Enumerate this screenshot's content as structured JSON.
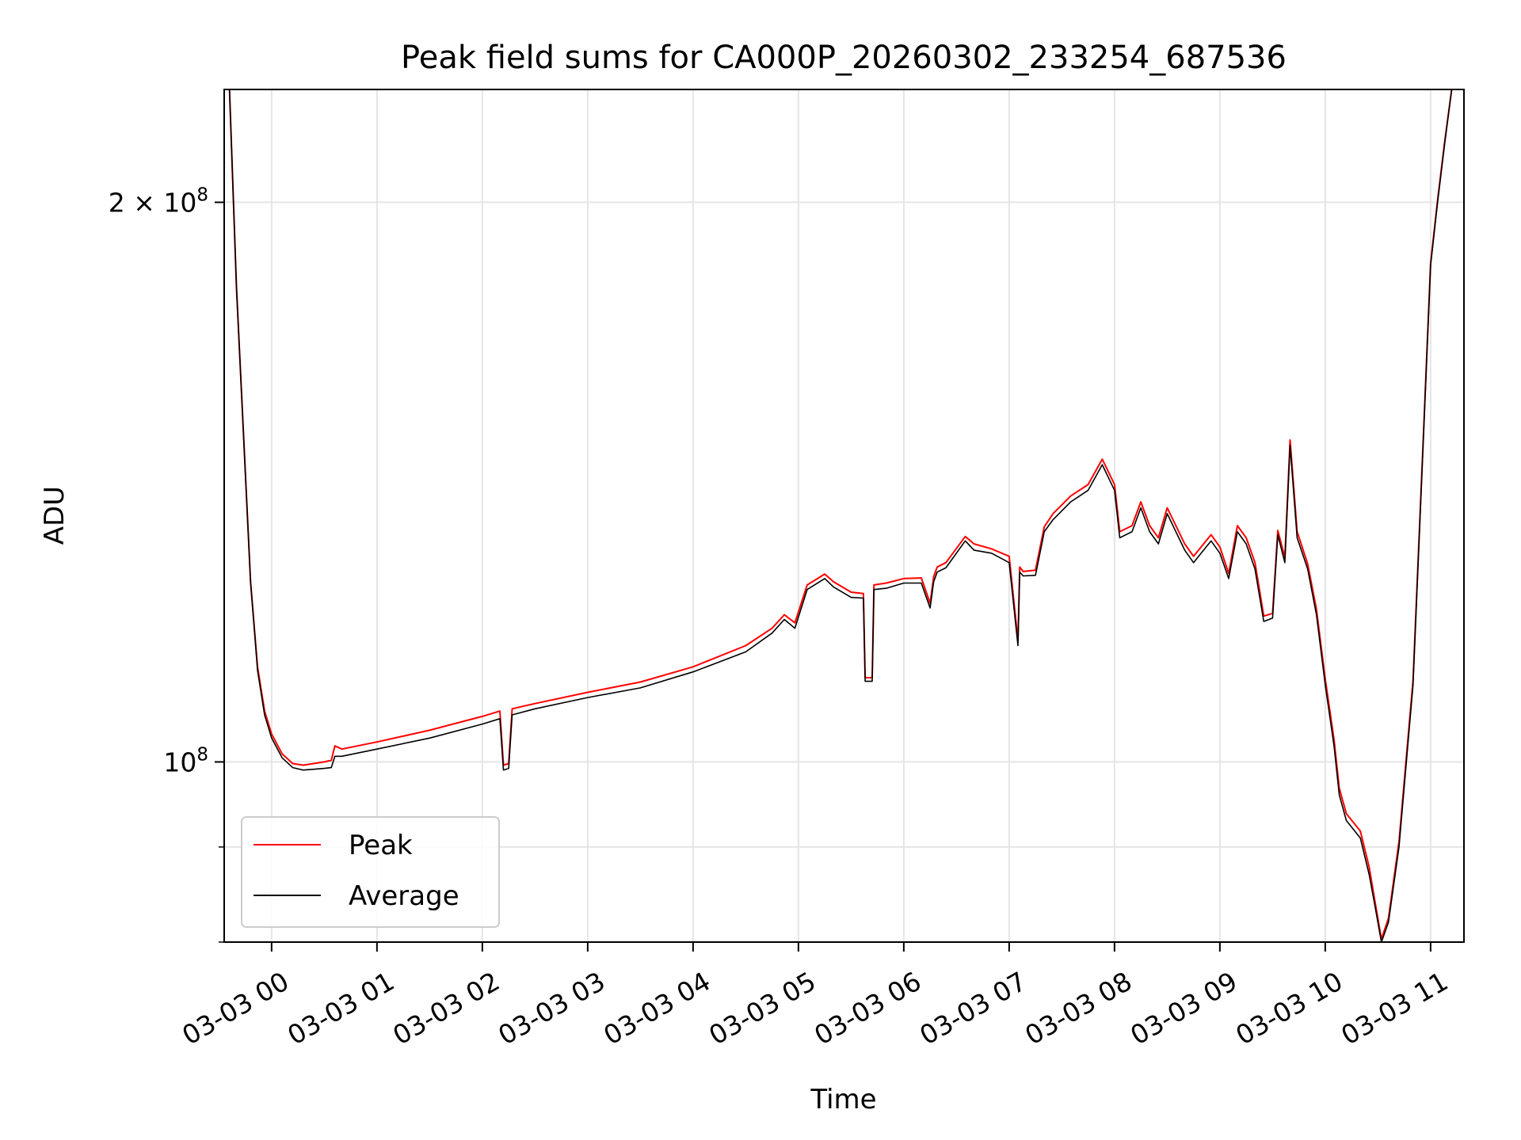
{
  "chart_data": {
    "type": "line",
    "title": "Peak field sums for CA000P_20260302_233254_687536",
    "xlabel": "Time",
    "ylabel": "ADU",
    "y_scale": "log",
    "ylim": [
      80000000,
      230000000
    ],
    "xlim": [
      "2026-03-02 23:33",
      "2026-03-03 11:19"
    ],
    "x_ticks": [
      {
        "t": "2026-03-03 00:00",
        "label": "03-03 00"
      },
      {
        "t": "2026-03-03 01:00",
        "label": "03-03 01"
      },
      {
        "t": "2026-03-03 02:00",
        "label": "03-03 02"
      },
      {
        "t": "2026-03-03 03:00",
        "label": "03-03 03"
      },
      {
        "t": "2026-03-03 04:00",
        "label": "03-03 04"
      },
      {
        "t": "2026-03-03 05:00",
        "label": "03-03 05"
      },
      {
        "t": "2026-03-03 06:00",
        "label": "03-03 06"
      },
      {
        "t": "2026-03-03 07:00",
        "label": "03-03 07"
      },
      {
        "t": "2026-03-03 08:00",
        "label": "03-03 08"
      },
      {
        "t": "2026-03-03 09:00",
        "label": "03-03 09"
      },
      {
        "t": "2026-03-03 10:00",
        "label": "03-03 10"
      },
      {
        "t": "2026-03-03 11:00",
        "label": "03-03 11"
      }
    ],
    "y_ticks_major": [
      {
        "value": 100000000,
        "base": "10",
        "exp": "8"
      },
      {
        "value": 200000000,
        "base": "2 × 10",
        "exp": "8"
      }
    ],
    "y_ticks_minor": [
      80000000,
      90000000
    ],
    "grid": true,
    "legend": {
      "placement": "lower-left",
      "entries": [
        {
          "label": "Peak",
          "color": "#ff0000"
        },
        {
          "label": "Average",
          "color": "#000000"
        }
      ]
    },
    "series": [
      {
        "name": "Average",
        "color": "#000000",
        "x": [
          "2026-03-02 23:36",
          "2026-03-02 23:40",
          "2026-03-02 23:44",
          "2026-03-02 23:48",
          "2026-03-02 23:52",
          "2026-03-02 23:56",
          "2026-03-03 00:00",
          "2026-03-03 00:06",
          "2026-03-03 00:12",
          "2026-03-03 00:18",
          "2026-03-03 00:24",
          "2026-03-03 00:30",
          "2026-03-03 00:34",
          "2026-03-03 00:36",
          "2026-03-03 00:40",
          "2026-03-03 01:00",
          "2026-03-03 01:30",
          "2026-03-03 02:00",
          "2026-03-03 02:10",
          "2026-03-03 02:12",
          "2026-03-03 02:15",
          "2026-03-03 02:17",
          "2026-03-03 02:30",
          "2026-03-03 03:00",
          "2026-03-03 03:30",
          "2026-03-03 04:00",
          "2026-03-03 04:30",
          "2026-03-03 04:45",
          "2026-03-03 04:52",
          "2026-03-03 04:58",
          "2026-03-03 05:05",
          "2026-03-03 05:15",
          "2026-03-03 05:20",
          "2026-03-03 05:30",
          "2026-03-03 05:37",
          "2026-03-03 05:38",
          "2026-03-03 05:42",
          "2026-03-03 05:43",
          "2026-03-03 05:50",
          "2026-03-03 06:00",
          "2026-03-03 06:10",
          "2026-03-03 06:15",
          "2026-03-03 06:17",
          "2026-03-03 06:19",
          "2026-03-03 06:24",
          "2026-03-03 06:35",
          "2026-03-03 06:40",
          "2026-03-03 06:50",
          "2026-03-03 07:00",
          "2026-03-03 07:05",
          "2026-03-03 07:06",
          "2026-03-03 07:08",
          "2026-03-03 07:15",
          "2026-03-03 07:20",
          "2026-03-03 07:25",
          "2026-03-03 07:35",
          "2026-03-03 07:45",
          "2026-03-03 07:53",
          "2026-03-03 08:00",
          "2026-03-03 08:03",
          "2026-03-03 08:10",
          "2026-03-03 08:15",
          "2026-03-03 08:20",
          "2026-03-03 08:25",
          "2026-03-03 08:30",
          "2026-03-03 08:40",
          "2026-03-03 08:45",
          "2026-03-03 08:55",
          "2026-03-03 09:00",
          "2026-03-03 09:05",
          "2026-03-03 09:10",
          "2026-03-03 09:15",
          "2026-03-03 09:20",
          "2026-03-03 09:25",
          "2026-03-03 09:30",
          "2026-03-03 09:33",
          "2026-03-03 09:37",
          "2026-03-03 09:40",
          "2026-03-03 09:44",
          "2026-03-03 09:50",
          "2026-03-03 09:55",
          "2026-03-03 10:00",
          "2026-03-03 10:05",
          "2026-03-03 10:08",
          "2026-03-03 10:12",
          "2026-03-03 10:20",
          "2026-03-03 10:25",
          "2026-03-03 10:28",
          "2026-03-03 10:32",
          "2026-03-03 10:36",
          "2026-03-03 10:42",
          "2026-03-03 10:50",
          "2026-03-03 10:56",
          "2026-03-03 11:00",
          "2026-03-03 11:04",
          "2026-03-03 11:08",
          "2026-03-03 11:12"
        ],
        "values": [
          230000000,
          180000000,
          150000000,
          125000000,
          112000000,
          106000000,
          103000000,
          100500000,
          99300000,
          99000000,
          99100000,
          99200000,
          99300000,
          100700000,
          100700000,
          101600000,
          103000000,
          104800000,
          105500000,
          99000000,
          99200000,
          106000000,
          106800000,
          108300000,
          109600000,
          111800000,
          114600000,
          117300000,
          119300000,
          118000000,
          123800000,
          125500000,
          124200000,
          122600000,
          122500000,
          110500000,
          110500000,
          123800000,
          124000000,
          124800000,
          124800000,
          121000000,
          125000000,
          126500000,
          127200000,
          131500000,
          130000000,
          129500000,
          128000000,
          115500000,
          126500000,
          125900000,
          126000000,
          133000000,
          135000000,
          138000000,
          140000000,
          144500000,
          140000000,
          132000000,
          133000000,
          137000000,
          133000000,
          131000000,
          136000000,
          130000000,
          128000000,
          131500000,
          129500000,
          125500000,
          133000000,
          131000000,
          127000000,
          119000000,
          119500000,
          132500000,
          128000000,
          148000000,
          132000000,
          127000000,
          120000000,
          110000000,
          102000000,
          96000000,
          93000000,
          91000000,
          87000000,
          84000000,
          80000000,
          82000000,
          90000000,
          110000000,
          150000000,
          185000000,
          200000000,
          215000000,
          230000000
        ]
      },
      {
        "name": "Peak",
        "color": "#ff0000",
        "x": [
          "2026-03-02 23:36",
          "2026-03-02 23:40",
          "2026-03-02 23:44",
          "2026-03-02 23:48",
          "2026-03-02 23:52",
          "2026-03-02 23:56",
          "2026-03-03 00:00",
          "2026-03-03 00:06",
          "2026-03-03 00:12",
          "2026-03-03 00:18",
          "2026-03-03 00:24",
          "2026-03-03 00:30",
          "2026-03-03 00:34",
          "2026-03-03 00:36",
          "2026-03-03 00:40",
          "2026-03-03 01:00",
          "2026-03-03 01:30",
          "2026-03-03 02:00",
          "2026-03-03 02:10",
          "2026-03-03 02:12",
          "2026-03-03 02:15",
          "2026-03-03 02:17",
          "2026-03-03 02:30",
          "2026-03-03 03:00",
          "2026-03-03 03:30",
          "2026-03-03 04:00",
          "2026-03-03 04:30",
          "2026-03-03 04:45",
          "2026-03-03 04:52",
          "2026-03-03 04:58",
          "2026-03-03 05:05",
          "2026-03-03 05:15",
          "2026-03-03 05:20",
          "2026-03-03 05:30",
          "2026-03-03 05:37",
          "2026-03-03 05:38",
          "2026-03-03 05:42",
          "2026-03-03 05:43",
          "2026-03-03 05:50",
          "2026-03-03 06:00",
          "2026-03-03 06:10",
          "2026-03-03 06:15",
          "2026-03-03 06:17",
          "2026-03-03 06:19",
          "2026-03-03 06:24",
          "2026-03-03 06:35",
          "2026-03-03 06:40",
          "2026-03-03 06:50",
          "2026-03-03 07:00",
          "2026-03-03 07:05",
          "2026-03-03 07:06",
          "2026-03-03 07:08",
          "2026-03-03 07:15",
          "2026-03-03 07:20",
          "2026-03-03 07:25",
          "2026-03-03 07:35",
          "2026-03-03 07:45",
          "2026-03-03 07:53",
          "2026-03-03 08:00",
          "2026-03-03 08:03",
          "2026-03-03 08:10",
          "2026-03-03 08:15",
          "2026-03-03 08:20",
          "2026-03-03 08:25",
          "2026-03-03 08:30",
          "2026-03-03 08:40",
          "2026-03-03 08:45",
          "2026-03-03 08:55",
          "2026-03-03 09:00",
          "2026-03-03 09:05",
          "2026-03-03 09:10",
          "2026-03-03 09:15",
          "2026-03-03 09:20",
          "2026-03-03 09:25",
          "2026-03-03 09:30",
          "2026-03-03 09:33",
          "2026-03-03 09:37",
          "2026-03-03 09:40",
          "2026-03-03 09:44",
          "2026-03-03 09:50",
          "2026-03-03 09:55",
          "2026-03-03 10:00",
          "2026-03-03 10:05",
          "2026-03-03 10:08",
          "2026-03-03 10:12",
          "2026-03-03 10:20",
          "2026-03-03 10:25",
          "2026-03-03 10:28",
          "2026-03-03 10:32",
          "2026-03-03 10:36",
          "2026-03-03 10:42",
          "2026-03-03 10:50",
          "2026-03-03 10:56",
          "2026-03-03 11:00",
          "2026-03-03 11:04",
          "2026-03-03 11:08",
          "2026-03-03 11:12"
        ],
        "values": [
          230000000,
          180000000,
          150000000,
          125000000,
          112500000,
          106500000,
          103500000,
          101000000,
          99800000,
          99600000,
          99800000,
          100000000,
          100200000,
          102000000,
          101600000,
          102500000,
          104000000,
          105800000,
          106500000,
          99600000,
          99800000,
          106800000,
          107500000,
          109000000,
          110400000,
          112500000,
          115500000,
          118000000,
          120000000,
          118800000,
          124500000,
          126200000,
          125000000,
          123400000,
          123200000,
          111000000,
          111000000,
          124500000,
          124800000,
          125500000,
          125600000,
          121700000,
          125800000,
          127300000,
          128000000,
          132200000,
          131000000,
          130200000,
          129000000,
          116200000,
          127300000,
          126600000,
          126800000,
          133800000,
          136000000,
          139000000,
          141000000,
          145500000,
          141000000,
          133000000,
          134000000,
          138000000,
          134000000,
          132000000,
          137000000,
          131000000,
          129000000,
          132500000,
          130500000,
          126300000,
          134000000,
          132000000,
          128000000,
          119800000,
          120200000,
          133200000,
          128800000,
          149000000,
          133000000,
          127800000,
          120800000,
          110800000,
          102800000,
          96800000,
          93800000,
          91800000,
          87800000,
          84500000,
          80300000,
          82400000,
          90600000,
          110600000,
          150500000,
          185500000,
          200500000,
          215500000,
          230000000
        ]
      }
    ]
  }
}
